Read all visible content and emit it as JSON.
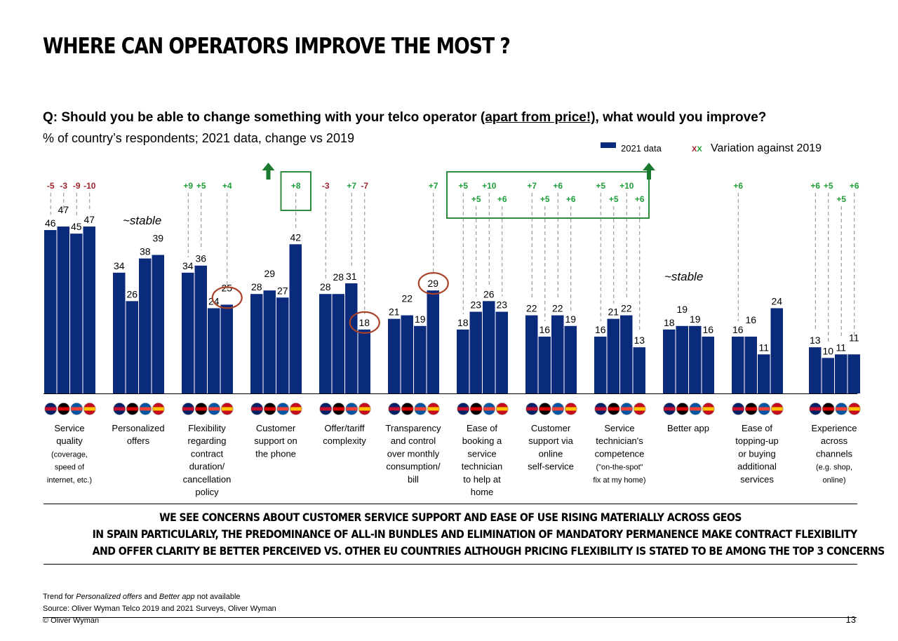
{
  "header": {
    "title": "WHERE CAN OPERATORS IMPROVE THE MOST ?",
    "question_pre": "Q: Should you be able to change something with your telco operator ",
    "question_u": "(apart from price!)",
    "question_post": ", what would you improve?",
    "subtitle": "% of country’s respondents; 2021 data, change vs 2019"
  },
  "legend": {
    "series_label": "2021 data",
    "variation_marker": "XX",
    "variation_label": "Variation against 2019"
  },
  "colors": {
    "bar": "#0a2a7c",
    "positive": "#1f9e3a",
    "negative": "#a0232f",
    "highlight_box": "#2e8b3e",
    "circle": "#a8432a"
  },
  "countries": [
    "UK",
    "Germany",
    "France",
    "Spain"
  ],
  "chart_data": {
    "type": "bar",
    "ylim": [
      0,
      55
    ],
    "categories": [
      "Service quality (coverage, speed of internet, etc.)",
      "Personalized offers",
      "Flexibility regarding contract duration/ cancellation policy",
      "Customer support on the phone",
      "Offer/tariff complexity",
      "Transparency and control over monthly consumption/ bill",
      "Ease of booking a service technician to help at home",
      "Customer support via online self-service",
      "Service technician's competence (\"on-the-spot\" fix at my home)",
      "Better app",
      "Ease of topping-up or buying additional services",
      "Experience across channels (e.g. shop, online)"
    ],
    "category_lines": [
      [
        "Service",
        "quality",
        "(coverage,",
        "speed of",
        "internet, etc.)"
      ],
      [
        "Personalized",
        "offers"
      ],
      [
        "Flexibility",
        "regarding",
        "contract",
        "duration/",
        "cancellation",
        "policy"
      ],
      [
        "Customer",
        "support on",
        "the phone"
      ],
      [
        "Offer/tariff",
        "complexity"
      ],
      [
        "Transparency",
        "and control",
        "over monthly",
        "consumption/",
        "bill"
      ],
      [
        "Ease of",
        "booking a",
        "service",
        "technician",
        "to help at",
        "home"
      ],
      [
        "Customer",
        "support via",
        "online",
        "self-service"
      ],
      [
        "Service",
        "technician's",
        "competence",
        "(\"on-the-spot\"",
        "fix at my home)"
      ],
      [
        "Better app"
      ],
      [
        "Ease of",
        "topping-up",
        "or buying",
        "additional",
        "services"
      ],
      [
        "Experience",
        "across",
        "channels",
        "(e.g. shop,",
        "online)"
      ]
    ],
    "values": [
      [
        46,
        47,
        45,
        47
      ],
      [
        34,
        26,
        38,
        39
      ],
      [
        34,
        36,
        24,
        25
      ],
      [
        28,
        29,
        27,
        42
      ],
      [
        28,
        28,
        31,
        18
      ],
      [
        21,
        22,
        19,
        29
      ],
      [
        18,
        23,
        26,
        23
      ],
      [
        22,
        16,
        22,
        19
      ],
      [
        16,
        21,
        22,
        13
      ],
      [
        18,
        19,
        19,
        16
      ],
      [
        16,
        16,
        11,
        24
      ],
      [
        13,
        10,
        11,
        11
      ]
    ],
    "variation": [
      [
        "-5",
        "-3",
        "-9",
        "-10"
      ],
      [
        "",
        "",
        "",
        ""
      ],
      [
        "+9",
        "+5",
        "",
        "+4"
      ],
      [
        "",
        "",
        "",
        "+8"
      ],
      [
        "-3",
        "",
        "+7",
        "-7"
      ],
      [
        "",
        "",
        "",
        "+7"
      ],
      [
        "+5",
        "+5",
        "+10",
        "+6"
      ],
      [
        "+7",
        "+5",
        "+6",
        "+6"
      ],
      [
        "+5",
        "+5",
        "+10",
        "+6"
      ],
      [
        "",
        "",
        "",
        ""
      ],
      [
        "+6",
        "",
        "",
        ""
      ],
      [
        "+6",
        "+5",
        "+5",
        "+6"
      ]
    ],
    "stable_label": "~stable",
    "stable_groups": [
      1,
      9
    ],
    "circled": [
      [
        2,
        3
      ],
      [
        4,
        3
      ],
      [
        5,
        3
      ]
    ],
    "highlight_box_groups": [
      [
        3,
        3
      ],
      [
        6,
        8
      ]
    ]
  },
  "conclusion": {
    "line1": "WE SEE CONCERNS ABOUT CUSTOMER SERVICE SUPPORT AND EASE OF USE RISING MATERIALLY ACROSS GEOS",
    "line2": "IN SPAIN PARTICULARLY, THE PREDOMINANCE OF ALL-IN BUNDLES AND ELIMINATION OF MANDATORY PERMANENCE MAKE CONTRACT FLEXIBILITY",
    "line3": "AND OFFER CLARITY BE BETTER PERCEIVED VS. OTHER EU COUNTRIES ALTHOUGH PRICING FLEXIBILITY IS STATED TO BE AMONG THE TOP 3 CONCERNS"
  },
  "footer": {
    "note_pre": "Trend for ",
    "note_i1": "Personalized offers",
    "note_mid": " and ",
    "note_i2": "Better app",
    "note_post": " not available",
    "source": "Source: Oliver Wyman Telco 2019 and 2021 Surveys, Oliver Wyman",
    "copyright": "© Oliver Wyman",
    "page": "13"
  }
}
